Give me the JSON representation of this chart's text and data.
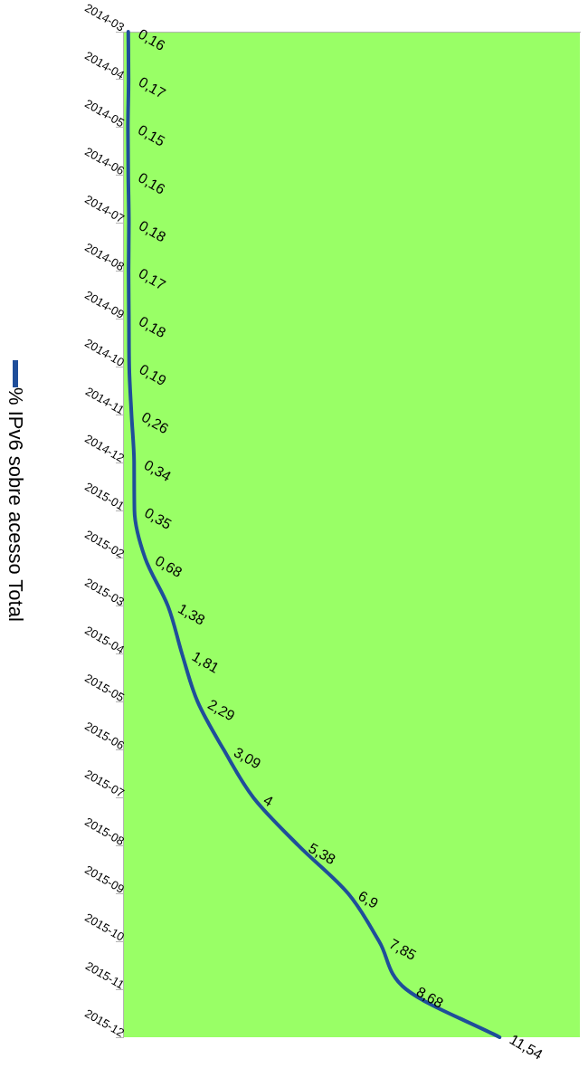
{
  "chart_data": {
    "type": "line",
    "categories": [
      "2014-03",
      "2014-04",
      "2014-05",
      "2014-06",
      "2014-07",
      "2014-08",
      "2014-09",
      "2014-10",
      "2014-11",
      "2014-12",
      "2015-01",
      "2015-02",
      "2015-03",
      "2015-04",
      "2015-05",
      "2015-06",
      "2015-07",
      "2015-08",
      "2015-09",
      "2015-10",
      "2015-11",
      "2015-12"
    ],
    "series": [
      {
        "name": "% IPv6 sobre acesso Total",
        "color": "#1f4e9a",
        "values": [
          0.16,
          0.17,
          0.15,
          0.16,
          0.18,
          0.17,
          0.18,
          0.19,
          0.26,
          0.34,
          0.35,
          0.68,
          1.38,
          1.81,
          2.29,
          3.09,
          4,
          5.38,
          6.9,
          7.85,
          8.68,
          11.54
        ],
        "value_labels": [
          "0,16",
          "0,17",
          "0,15",
          "0,16",
          "0,18",
          "0,17",
          "0,18",
          "0,19",
          "0,26",
          "0,34",
          "0,35",
          "0,68",
          "1,38",
          "1,81",
          "2,29",
          "3,09",
          "4",
          "5,38",
          "6,9",
          "7,85",
          "8,68",
          "11,54"
        ]
      }
    ],
    "orientation": "horizontal",
    "tick_labels": "y",
    "legend": "left",
    "marker": "none",
    "line_style": "solid"
  }
}
